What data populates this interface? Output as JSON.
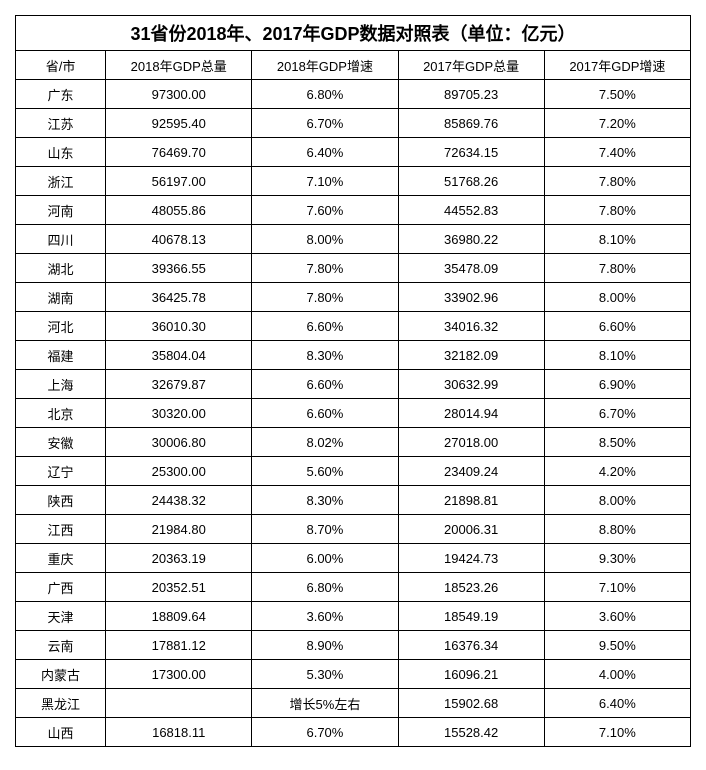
{
  "title": "31省份2018年、2017年GDP数据对照表（单位：亿元）",
  "columns": [
    "省/市",
    "2018年GDP总量",
    "2018年GDP增速",
    "2017年GDP总量",
    "2017年GDP增速"
  ],
  "rows": [
    [
      "广东",
      "97300.00",
      "6.80%",
      "89705.23",
      "7.50%"
    ],
    [
      "江苏",
      "92595.40",
      "6.70%",
      "85869.76",
      "7.20%"
    ],
    [
      "山东",
      "76469.70",
      "6.40%",
      "72634.15",
      "7.40%"
    ],
    [
      "浙江",
      "56197.00",
      "7.10%",
      "51768.26",
      "7.80%"
    ],
    [
      "河南",
      "48055.86",
      "7.60%",
      "44552.83",
      "7.80%"
    ],
    [
      "四川",
      "40678.13",
      "8.00%",
      "36980.22",
      "8.10%"
    ],
    [
      "湖北",
      "39366.55",
      "7.80%",
      "35478.09",
      "7.80%"
    ],
    [
      "湖南",
      "36425.78",
      "7.80%",
      "33902.96",
      "8.00%"
    ],
    [
      "河北",
      "36010.30",
      "6.60%",
      "34016.32",
      "6.60%"
    ],
    [
      "福建",
      "35804.04",
      "8.30%",
      "32182.09",
      "8.10%"
    ],
    [
      "上海",
      "32679.87",
      "6.60%",
      "30632.99",
      "6.90%"
    ],
    [
      "北京",
      "30320.00",
      "6.60%",
      "28014.94",
      "6.70%"
    ],
    [
      "安徽",
      "30006.80",
      "8.02%",
      "27018.00",
      "8.50%"
    ],
    [
      "辽宁",
      "25300.00",
      "5.60%",
      "23409.24",
      "4.20%"
    ],
    [
      "陕西",
      "24438.32",
      "8.30%",
      "21898.81",
      "8.00%"
    ],
    [
      "江西",
      "21984.80",
      "8.70%",
      "20006.31",
      "8.80%"
    ],
    [
      "重庆",
      "20363.19",
      "6.00%",
      "19424.73",
      "9.30%"
    ],
    [
      "广西",
      "20352.51",
      "6.80%",
      "18523.26",
      "7.10%"
    ],
    [
      "天津",
      "18809.64",
      "3.60%",
      "18549.19",
      "3.60%"
    ],
    [
      "云南",
      "17881.12",
      "8.90%",
      "16376.34",
      "9.50%"
    ],
    [
      "内蒙古",
      "17300.00",
      "5.30%",
      "16096.21",
      "4.00%"
    ],
    [
      "黑龙江",
      "",
      "增长5%左右",
      "15902.68",
      "6.40%"
    ],
    [
      "山西",
      "16818.11",
      "6.70%",
      "15528.42",
      "7.10%"
    ]
  ]
}
